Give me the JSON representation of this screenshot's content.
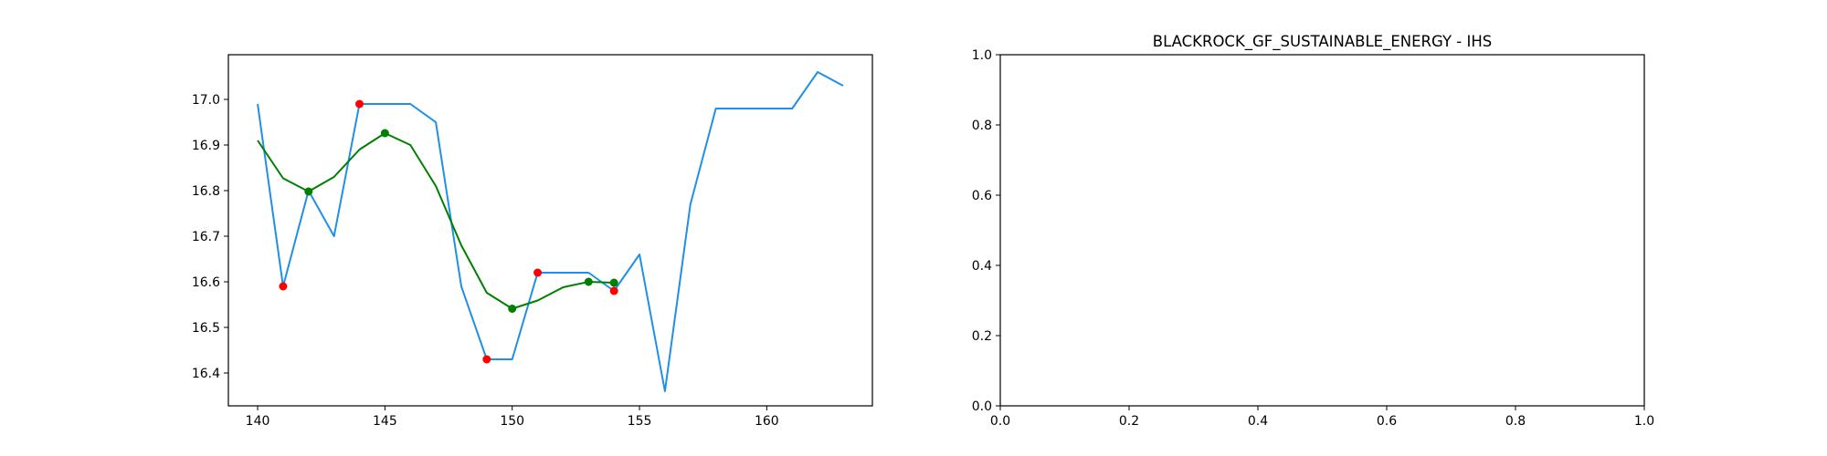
{
  "chart_data": [
    {
      "type": "line",
      "title": "",
      "xlabel": "",
      "ylabel": "",
      "xlim": [
        138.85,
        164.15
      ],
      "ylim": [
        16.328,
        17.098
      ],
      "xticks": [
        140,
        145,
        150,
        155,
        160
      ],
      "yticks": [
        16.4,
        16.5,
        16.6,
        16.7,
        16.8,
        16.9,
        17.0
      ],
      "xtick_labels": [
        "140",
        "145",
        "150",
        "155",
        "160"
      ],
      "ytick_labels": [
        "16.4",
        "16.5",
        "16.6",
        "16.7",
        "16.8",
        "16.9",
        "17.0"
      ],
      "grid": false,
      "legend": "none",
      "series": [
        {
          "style": "line",
          "color": "#1f8fe8",
          "x": [
            140,
            141,
            142,
            143,
            144,
            145,
            146,
            147,
            148,
            149,
            150,
            151,
            152,
            153,
            154,
            155,
            156,
            157,
            158,
            159,
            160,
            161,
            162,
            163
          ],
          "y": [
            16.99,
            16.59,
            16.8,
            16.7,
            16.99,
            16.99,
            16.99,
            16.95,
            16.59,
            16.43,
            16.43,
            16.62,
            16.62,
            16.62,
            16.58,
            16.66,
            16.36,
            16.77,
            16.98,
            16.98,
            16.98,
            16.98,
            17.06,
            17.03
          ]
        },
        {
          "style": "line",
          "color": "#008000",
          "x": [
            140,
            141,
            142,
            143,
            144,
            145,
            146,
            147,
            148,
            149,
            150,
            151,
            152,
            153,
            154
          ],
          "y": [
            16.91,
            16.827,
            16.798,
            16.83,
            16.89,
            16.926,
            16.9,
            16.81,
            16.68,
            16.576,
            16.541,
            16.559,
            16.588,
            16.6,
            16.598
          ]
        },
        {
          "style": "scatter",
          "color": "#ff0000",
          "x": [
            141,
            144,
            149,
            151,
            154
          ],
          "y": [
            16.59,
            16.99,
            16.43,
            16.62,
            16.58
          ]
        },
        {
          "style": "scatter",
          "color": "#008000",
          "x": [
            142,
            145,
            150,
            153,
            154
          ],
          "y": [
            16.798,
            16.926,
            16.541,
            16.6,
            16.598
          ]
        }
      ]
    },
    {
      "type": "line",
      "title": "BLACKROCK_GF_SUSTAINABLE_ENERGY - IHS",
      "xlabel": "",
      "ylabel": "",
      "xlim": [
        0,
        1
      ],
      "ylim": [
        0,
        1
      ],
      "xticks": [
        0,
        0.2,
        0.4,
        0.6,
        0.8,
        1.0
      ],
      "yticks": [
        0,
        0.2,
        0.4,
        0.6,
        0.8,
        1.0
      ],
      "xtick_labels": [
        "0.0",
        "0.2",
        "0.4",
        "0.6",
        "0.8",
        "1.0"
      ],
      "ytick_labels": [
        "0.0",
        "0.2",
        "0.4",
        "0.6",
        "0.8",
        "1.0"
      ],
      "grid": false,
      "legend": "none",
      "series": []
    }
  ]
}
